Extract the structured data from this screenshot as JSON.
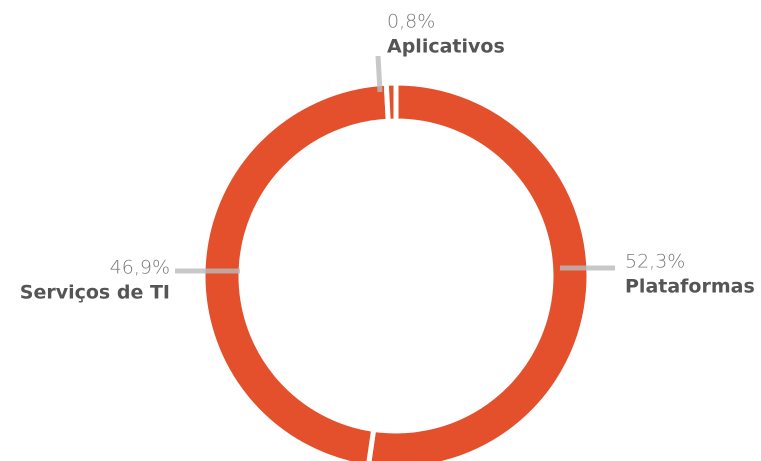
{
  "chart_data": {
    "type": "donut",
    "categories": [
      "Plataformas",
      "Serviços de TI",
      "Aplicativos"
    ],
    "values": [
      52.3,
      46.9,
      0.8
    ],
    "value_labels": [
      "52,3%",
      "46,9%",
      "0,8%"
    ],
    "color": "#e3502b"
  }
}
